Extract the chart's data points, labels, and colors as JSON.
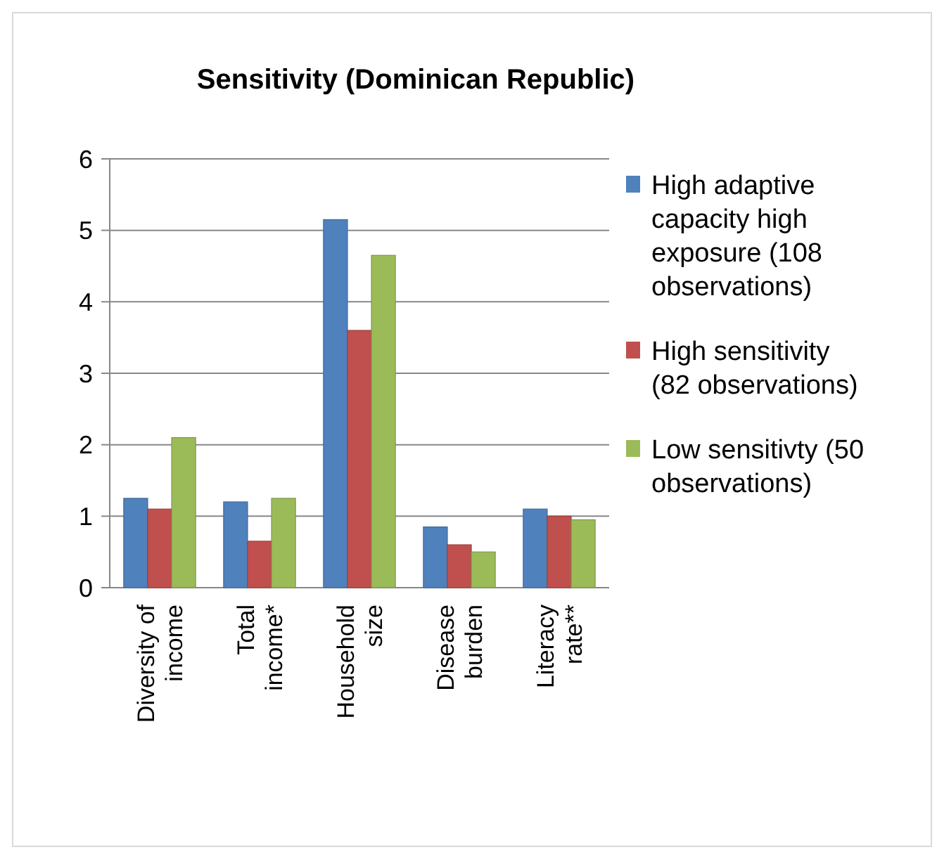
{
  "chart_data": {
    "type": "bar",
    "title": "Sensitivity (Dominican Republic)",
    "categories": [
      "Diversity of income",
      "Total income*",
      "Household size",
      "Disease burden",
      "Literacy rate**"
    ],
    "series": [
      {
        "name": "High adaptive capacity high exposure (108 observations)",
        "color": "#4f81bd",
        "values": [
          1.25,
          1.2,
          5.15,
          0.85,
          1.1
        ]
      },
      {
        "name": "High sensitivity (82 observations)",
        "color": "#c0504d",
        "values": [
          1.1,
          0.65,
          3.6,
          0.6,
          1.0
        ]
      },
      {
        "name": "Low sensitivty (50 observations)",
        "color": "#9bbb59",
        "values": [
          2.1,
          1.25,
          4.65,
          0.5,
          0.95
        ]
      }
    ],
    "ylim": [
      0,
      6
    ],
    "yticks": [
      0,
      1,
      2,
      3,
      4,
      5,
      6
    ],
    "grid": "y",
    "legend": "right"
  }
}
